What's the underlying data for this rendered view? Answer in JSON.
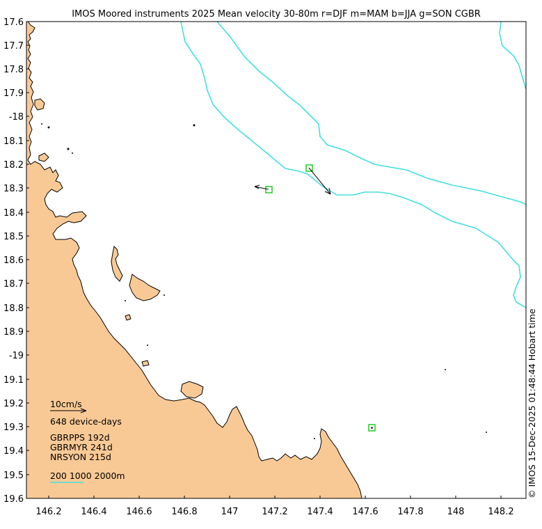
{
  "title": "IMOS Moored instruments 2025 Mean velocity 30-80m r=DJF m=MAM b=JJA g=SON CGBR",
  "credit": "© IMOS 15-Dec-2025 01:48:44 Hobart time",
  "axes": {
    "lon_ticks": [
      "146.2",
      "146.4",
      "146.6",
      "146.8",
      "147",
      "147.2",
      "147.4",
      "147.6",
      "147.8",
      "148",
      "148.2"
    ],
    "lat_ticks": [
      "17.6",
      "17.7",
      "17.8",
      "17.9",
      "-18",
      "18.1",
      "18.2",
      "18.3",
      "18.4",
      "18.5",
      "18.6",
      "18.7",
      "18.8",
      "18.9",
      "-19",
      "19.1",
      "19.2",
      "19.3",
      "19.4",
      "19.5",
      "19.6"
    ]
  },
  "legend": {
    "scale_label": "10cm/s",
    "device_days": "648 device-days",
    "stations": [
      "GBRPPS 192d",
      "GBRMYR 241d",
      "NRSYON 215d"
    ],
    "isobaths": "200 1000 2000m"
  },
  "colors": {
    "land": "#f9c995",
    "isobath": "#40e0e0",
    "station": "#22cc22",
    "coast": "#000000"
  },
  "stations": [
    {
      "name": "GBRPPS",
      "lon": 147.17,
      "lat": -18.31,
      "u_cms": -3.8,
      "v_cms": 0.8
    },
    {
      "name": "GBRMYR",
      "lon": 147.34,
      "lat": -18.22,
      "u_cms": 5.5,
      "v_cms": -6.5
    },
    {
      "name": "NRSYON",
      "lon": 147.62,
      "lat": -19.3,
      "u_cms": 0,
      "v_cms": 0
    }
  ]
}
